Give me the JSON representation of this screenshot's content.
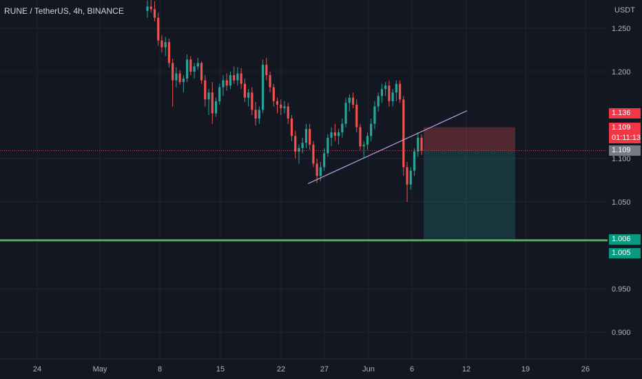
{
  "header": {
    "symbol_title": "RUNE / TetherUS, 4h, BINANCE",
    "currency": "USDT"
  },
  "price_tags": {
    "stop_level": "1.136",
    "last_price": "1.109",
    "countdown": "01:11:13",
    "entry_level": "1.109",
    "target_level": "1.006",
    "support_level": "1.005"
  },
  "colors": {
    "background": "#131722",
    "up": "#26a69a",
    "down": "#ef5350",
    "trendline": "#b39ddb",
    "support": "#4caf50",
    "stop_zone": "#ef5350",
    "target_zone": "#26a69a"
  },
  "chart_data": {
    "type": "candlestick",
    "xlabel": "",
    "ylabel": "",
    "x_ticks": [
      "24",
      "May",
      "8",
      "15",
      "22",
      "27",
      "Jun",
      "6",
      "12",
      "19",
      "26"
    ],
    "y_ticks": [
      "1.250",
      "1.200",
      "1.100",
      "1.050",
      "0.950",
      "0.900"
    ],
    "ylim": [
      0.87,
      1.29
    ],
    "grid": true,
    "support_line": 1.005,
    "trendline": {
      "from": [
        "May 24",
        1.071
      ],
      "to": [
        "Jun 12",
        1.155
      ]
    },
    "short_position": {
      "entry": 1.109,
      "stop": 1.136,
      "target": 1.006,
      "from": "Jun 7",
      "to": "Jun 18"
    },
    "series": [
      {
        "values": [
          [
            1.27,
            1.282,
            1.262,
            1.275
          ],
          [
            1.275,
            1.285,
            1.268,
            1.272
          ],
          [
            1.272,
            1.281,
            1.258,
            1.262
          ],
          [
            1.262,
            1.268,
            1.23,
            1.236
          ],
          [
            1.236,
            1.242,
            1.222,
            1.228
          ],
          [
            1.228,
            1.24,
            1.218,
            1.234
          ],
          [
            1.234,
            1.238,
            1.205,
            1.21
          ],
          [
            1.21,
            1.215,
            1.16,
            1.19
          ],
          [
            1.19,
            1.205,
            1.182,
            1.198
          ],
          [
            1.198,
            1.202,
            1.185,
            1.188
          ],
          [
            1.188,
            1.196,
            1.176,
            1.192
          ],
          [
            1.192,
            1.22,
            1.188,
            1.214
          ],
          [
            1.214,
            1.218,
            1.196,
            1.2
          ],
          [
            1.2,
            1.21,
            1.192,
            1.206
          ],
          [
            1.206,
            1.216,
            1.202,
            1.21
          ],
          [
            1.21,
            1.212,
            1.186,
            1.19
          ],
          [
            1.19,
            1.196,
            1.16,
            1.168
          ],
          [
            1.168,
            1.18,
            1.15,
            1.176
          ],
          [
            1.176,
            1.188,
            1.14,
            1.152
          ],
          [
            1.152,
            1.17,
            1.148,
            1.166
          ],
          [
            1.166,
            1.186,
            1.162,
            1.182
          ],
          [
            1.182,
            1.196,
            1.172,
            1.19
          ],
          [
            1.19,
            1.198,
            1.178,
            1.184
          ],
          [
            1.184,
            1.2,
            1.18,
            1.196
          ],
          [
            1.196,
            1.206,
            1.186,
            1.19
          ],
          [
            1.19,
            1.205,
            1.184,
            1.198
          ],
          [
            1.198,
            1.204,
            1.18,
            1.186
          ],
          [
            1.186,
            1.192,
            1.165,
            1.17
          ],
          [
            1.17,
            1.18,
            1.16,
            1.176
          ],
          [
            1.176,
            1.182,
            1.15,
            1.156
          ],
          [
            1.156,
            1.165,
            1.138,
            1.146
          ],
          [
            1.146,
            1.16,
            1.14,
            1.156
          ],
          [
            1.156,
            1.214,
            1.152,
            1.208
          ],
          [
            1.208,
            1.216,
            1.19,
            1.196
          ],
          [
            1.196,
            1.2,
            1.176,
            1.182
          ],
          [
            1.182,
            1.186,
            1.16,
            1.166
          ],
          [
            1.166,
            1.17,
            1.152,
            1.162
          ],
          [
            1.162,
            1.168,
            1.15,
            1.158
          ],
          [
            1.158,
            1.166,
            1.152,
            1.16
          ],
          [
            1.16,
            1.164,
            1.14,
            1.146
          ],
          [
            1.146,
            1.15,
            1.12,
            1.126
          ],
          [
            1.126,
            1.132,
            1.1,
            1.108
          ],
          [
            1.108,
            1.116,
            1.094,
            1.112
          ],
          [
            1.112,
            1.124,
            1.106,
            1.118
          ],
          [
            1.118,
            1.14,
            1.112,
            1.134
          ],
          [
            1.134,
            1.14,
            1.11,
            1.116
          ],
          [
            1.116,
            1.12,
            1.09,
            1.094
          ],
          [
            1.094,
            1.1,
            1.072,
            1.08
          ],
          [
            1.08,
            1.096,
            1.074,
            1.09
          ],
          [
            1.09,
            1.112,
            1.086,
            1.106
          ],
          [
            1.106,
            1.128,
            1.102,
            1.124
          ],
          [
            1.124,
            1.136,
            1.114,
            1.13
          ],
          [
            1.13,
            1.14,
            1.12,
            1.126
          ],
          [
            1.126,
            1.134,
            1.116,
            1.13
          ],
          [
            1.13,
            1.146,
            1.124,
            1.14
          ],
          [
            1.14,
            1.17,
            1.136,
            1.164
          ],
          [
            1.164,
            1.174,
            1.154,
            1.17
          ],
          [
            1.17,
            1.176,
            1.158,
            1.162
          ],
          [
            1.162,
            1.168,
            1.13,
            1.136
          ],
          [
            1.136,
            1.14,
            1.11,
            1.114
          ],
          [
            1.114,
            1.12,
            1.1,
            1.116
          ],
          [
            1.116,
            1.13,
            1.11,
            1.126
          ],
          [
            1.126,
            1.146,
            1.12,
            1.14
          ],
          [
            1.14,
            1.166,
            1.134,
            1.16
          ],
          [
            1.16,
            1.176,
            1.154,
            1.172
          ],
          [
            1.172,
            1.186,
            1.164,
            1.18
          ],
          [
            1.18,
            1.188,
            1.172,
            1.184
          ],
          [
            1.184,
            1.19,
            1.16,
            1.166
          ],
          [
            1.166,
            1.18,
            1.16,
            1.176
          ],
          [
            1.176,
            1.19,
            1.166,
            1.186
          ],
          [
            1.186,
            1.19,
            1.164,
            1.168
          ],
          [
            1.168,
            1.172,
            1.08,
            1.09
          ],
          [
            1.09,
            1.096,
            1.05,
            1.07
          ],
          [
            1.07,
            1.09,
            1.064,
            1.086
          ],
          [
            1.086,
            1.112,
            1.08,
            1.108
          ],
          [
            1.108,
            1.13,
            1.102,
            1.124
          ],
          [
            1.124,
            1.128,
            1.104,
            1.109
          ]
        ]
      }
    ]
  }
}
